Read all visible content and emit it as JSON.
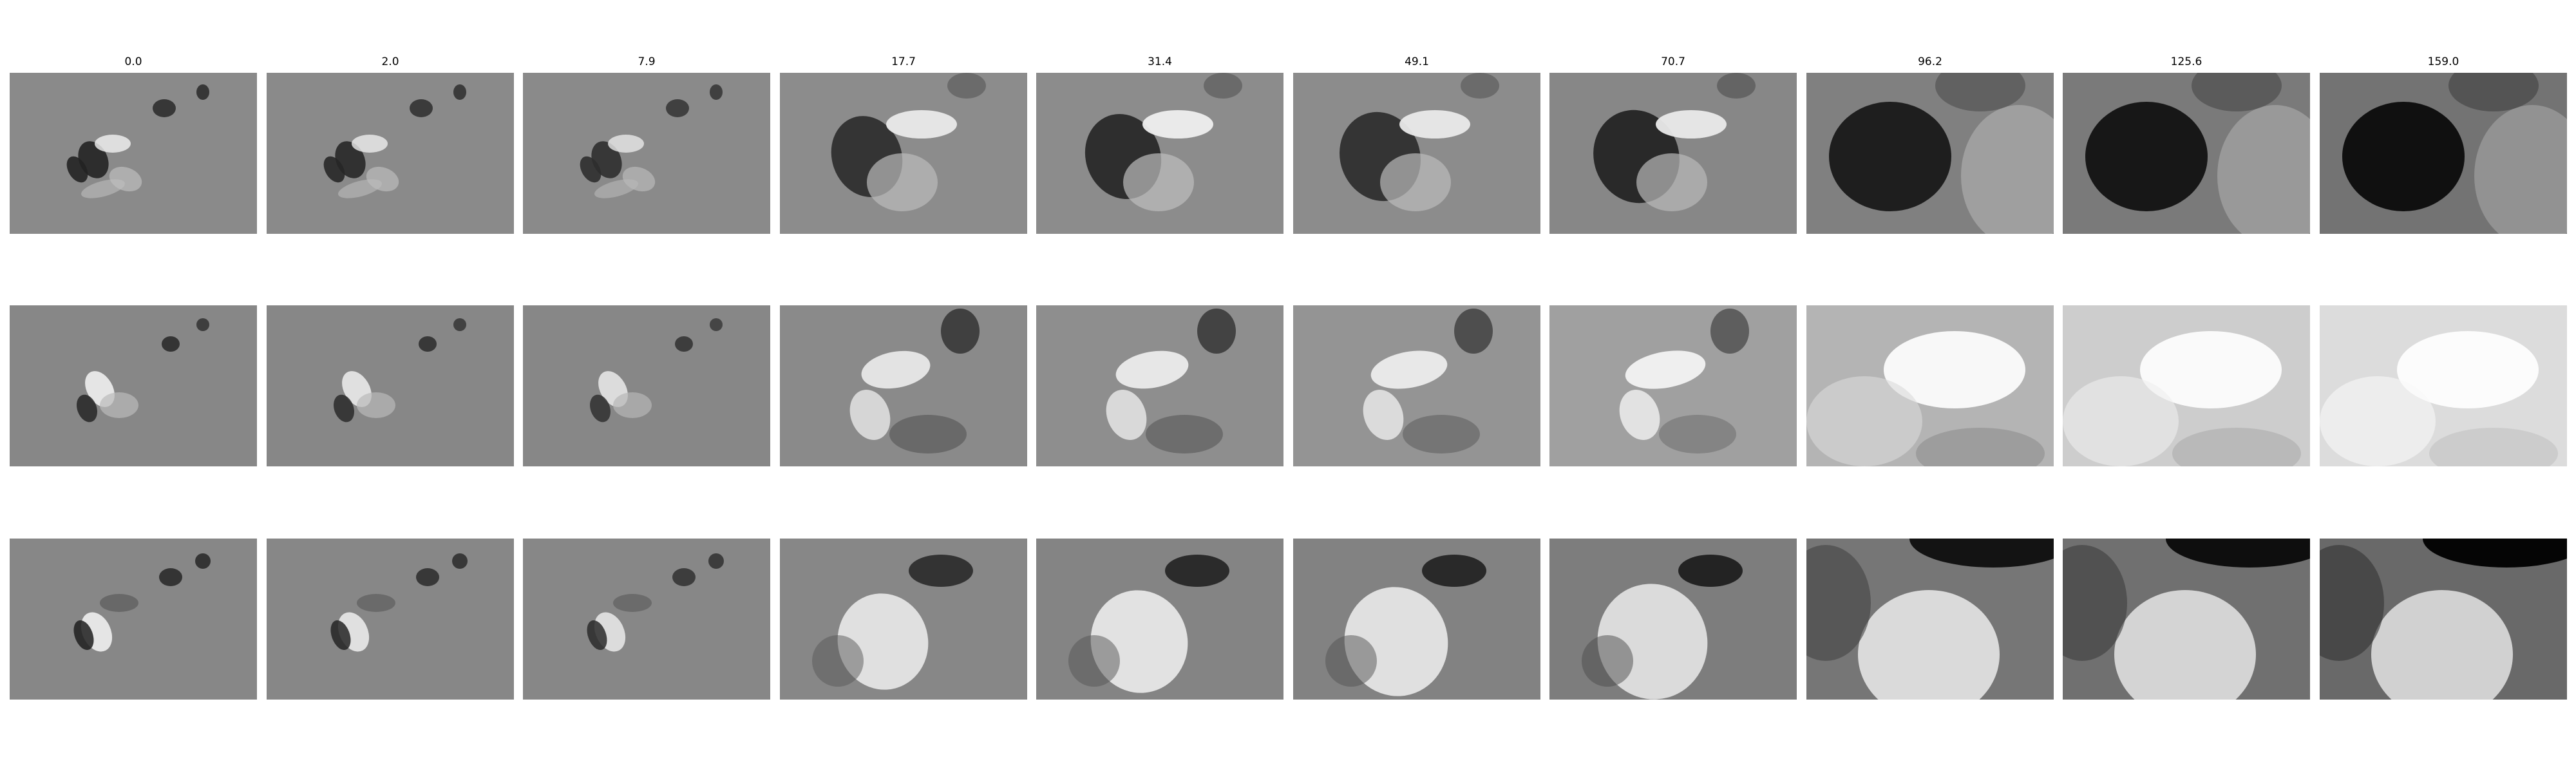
{
  "figure": {
    "column_titles": [
      "0.0",
      "2.0",
      "7.9",
      "17.7",
      "31.4",
      "49.1",
      "70.7",
      "96.2",
      "125.6",
      "159.0"
    ],
    "row_count": 3,
    "colormap": "grayscale",
    "colors": {
      "background": "#ffffff",
      "panel_mid_gray": "#8a8a8a"
    },
    "rows": [
      {
        "kind": "row-1-dark-core",
        "panel_gray_levels": [
          138,
          138,
          138,
          140,
          140,
          140,
          135,
          128,
          122,
          115
        ],
        "feature_contrast": [
          0.95,
          0.9,
          0.85,
          0.85,
          0.9,
          0.85,
          0.9,
          0.95,
          0.95,
          0.95
        ]
      },
      {
        "kind": "row-2-bright-core",
        "panel_gray_levels": [
          135,
          135,
          135,
          138,
          142,
          148,
          160,
          180,
          205,
          220
        ],
        "feature_contrast": [
          0.95,
          0.9,
          0.85,
          0.85,
          0.85,
          0.8,
          0.75,
          0.7,
          0.6,
          0.5
        ]
      },
      {
        "kind": "row-3-bright-core-dark-top",
        "panel_gray_levels": [
          135,
          135,
          135,
          135,
          132,
          130,
          125,
          118,
          112,
          105
        ],
        "feature_contrast": [
          0.95,
          0.9,
          0.85,
          0.85,
          0.9,
          0.9,
          0.9,
          0.95,
          0.95,
          1.0
        ]
      }
    ]
  }
}
